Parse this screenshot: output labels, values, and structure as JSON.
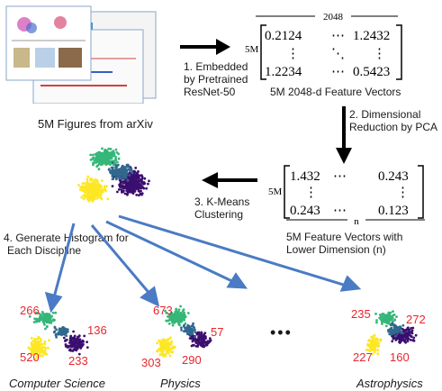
{
  "figures_caption": "5M Figures from arXiv",
  "step1": [
    "1. Embedded",
    "by Pretrained",
    "ResNet-50"
  ],
  "matrix1": {
    "width_label": "2048",
    "rows_label": "5M",
    "cells": [
      [
        "0.2124",
        "⋯",
        "1.2432"
      ],
      [
        "⋮",
        "⋱",
        "⋮"
      ],
      [
        "1.2234",
        "⋯",
        "0.5423"
      ]
    ],
    "caption": "5M 2048-d Feature Vectors"
  },
  "step2": [
    "2. Dimensional",
    "Reduction by PCA"
  ],
  "matrix2": {
    "rows_label": "5M",
    "cells": [
      [
        "1.432",
        "⋯",
        "0.243"
      ],
      [
        "⋮",
        "",
        "⋮"
      ],
      [
        "0.243",
        "⋯",
        "0.123"
      ]
    ],
    "width_label": "n",
    "caption": [
      "5M Feature Vectors with",
      "Lower Dimension (n)"
    ]
  },
  "step3": [
    "3. K-Means",
    "Clustering"
  ],
  "step4": [
    "4. Generate Histogram for",
    "Each Discipline"
  ],
  "ellipsis": "•••",
  "disciplines": [
    {
      "name": "Computer Science",
      "counts": [
        "266",
        "136",
        "520",
        "233"
      ]
    },
    {
      "name": "Physics",
      "counts": [
        "673",
        "57",
        "303",
        "290"
      ]
    },
    {
      "name": "Astrophysics",
      "counts": [
        "235",
        "272",
        "227",
        "160"
      ]
    }
  ],
  "colors": {
    "green": "#35b779",
    "purple": "#3b0f70",
    "blue": "#31688e",
    "yellow": "#fde725",
    "arrow_blue": "#4a7bc4",
    "count_red": "#e8262c"
  }
}
